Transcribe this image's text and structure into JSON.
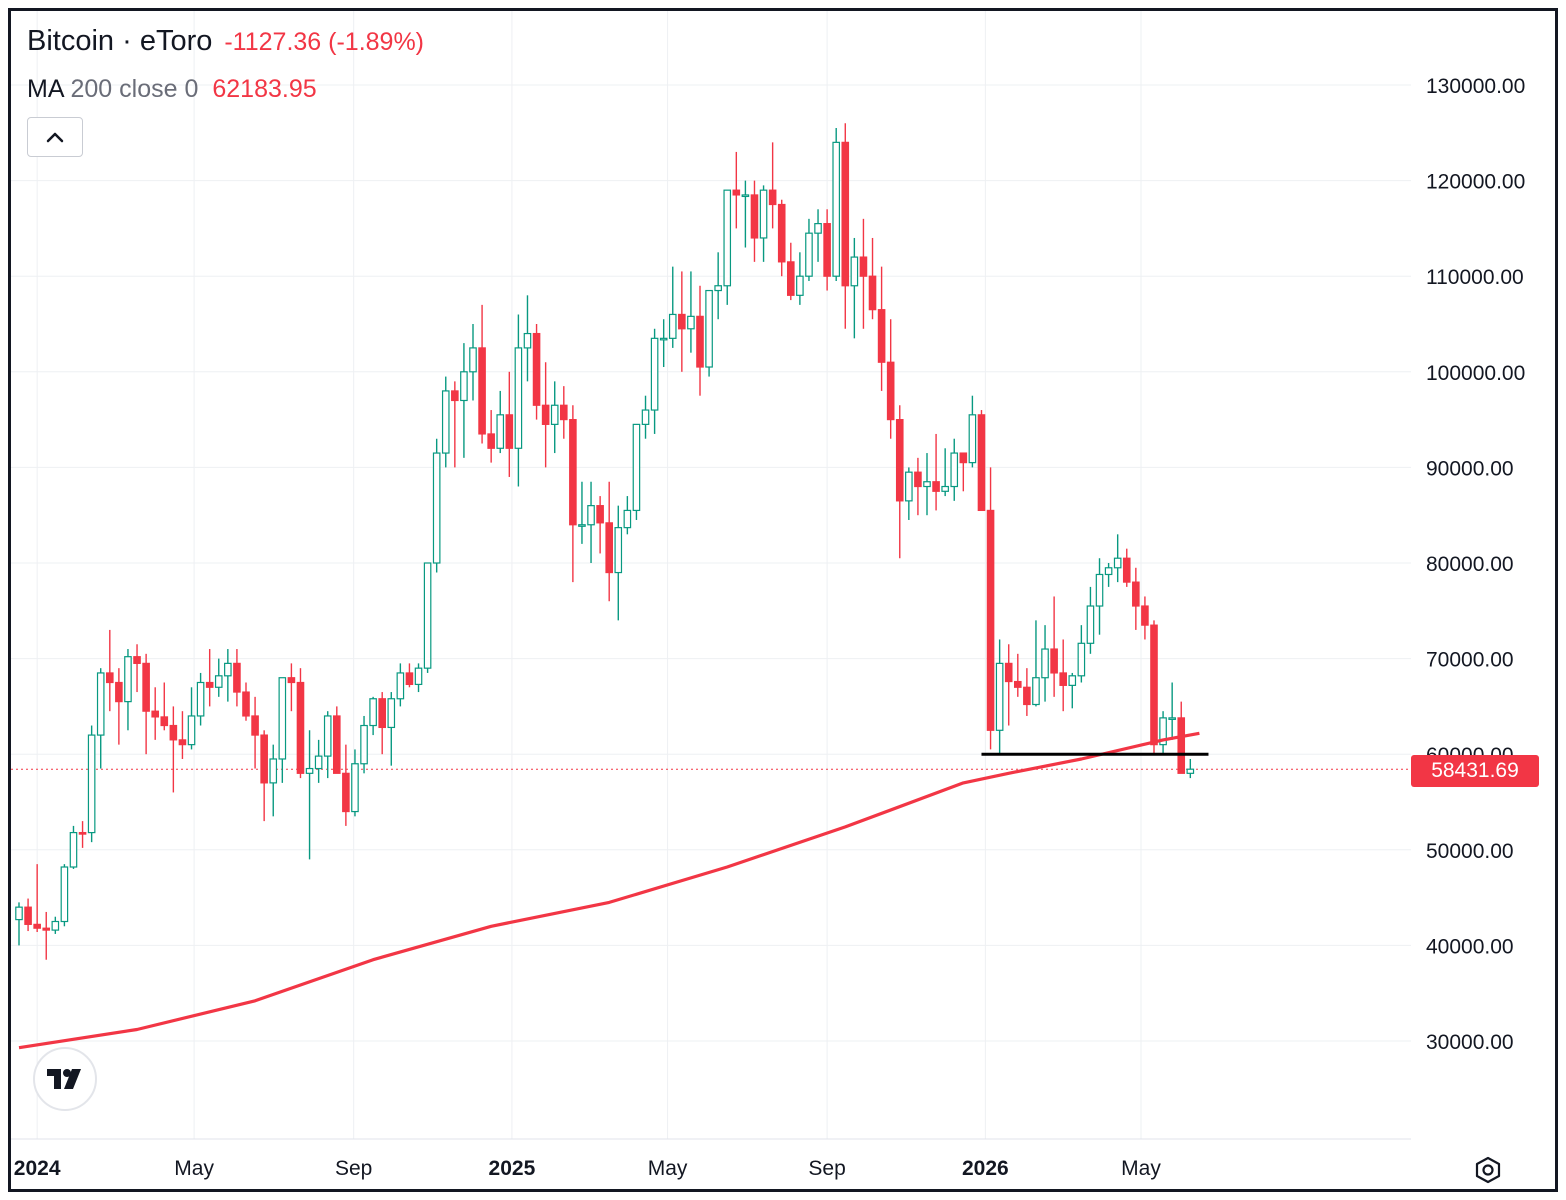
{
  "legend": {
    "symbol": "Bitcoin · eToro",
    "change": "-1127.36 (-1.89%)",
    "ma_name": "MA",
    "ma_params": "200 close 0",
    "ma_value": "62183.95"
  },
  "last_price_label": "58431.69",
  "icons": {
    "collapse": "chevron-up-icon",
    "logo": "tradingview-logo-icon",
    "settings": "settings-hexagon-icon"
  },
  "colors": {
    "up": "#089981",
    "down": "#f23645",
    "ma": "#f23645",
    "support_line": "#000000",
    "grid": "#eef0f3",
    "text": "#131722"
  },
  "chart_data": {
    "type": "candlestick",
    "interval": "weekly",
    "ylim": [
      21000,
      139000
    ],
    "y_ticks": [
      {
        "value": 30000,
        "label": "30000.00"
      },
      {
        "value": 40000,
        "label": "40000.00"
      },
      {
        "value": 50000,
        "label": "50000.00"
      },
      {
        "value": 60000,
        "label": "60000.00"
      },
      {
        "value": 70000,
        "label": "70000.00"
      },
      {
        "value": 80000,
        "label": "80000.00"
      },
      {
        "value": 90000,
        "label": "90000.00"
      },
      {
        "value": 100000,
        "label": "100000.00"
      },
      {
        "value": 110000,
        "label": "110000.00"
      },
      {
        "value": 120000,
        "label": "120000.00"
      },
      {
        "value": 130000,
        "label": "130000.00"
      }
    ],
    "x_ticks": [
      {
        "date": "2024-01-01",
        "label": "2024",
        "bold": true
      },
      {
        "date": "2024-05-01",
        "label": "May",
        "bold": false
      },
      {
        "date": "2024-09-01",
        "label": "Sep",
        "bold": false
      },
      {
        "date": "2025-01-01",
        "label": "2025",
        "bold": true
      },
      {
        "date": "2025-05-01",
        "label": "May",
        "bold": false
      },
      {
        "date": "2025-09-01",
        "label": "Sep",
        "bold": false
      },
      {
        "date": "2026-01-01",
        "label": "2026",
        "bold": true
      },
      {
        "date": "2026-05-01",
        "label": "May",
        "bold": false
      }
    ],
    "first_week": "2023-12-18",
    "candles": [
      [
        42700,
        44500,
        40000,
        44000
      ],
      [
        44000,
        44900,
        41500,
        42200
      ],
      [
        42200,
        48500,
        41400,
        41800
      ],
      [
        41800,
        43500,
        38500,
        41600
      ],
      [
        41600,
        43000,
        41200,
        42500
      ],
      [
        42500,
        48500,
        42000,
        48200
      ],
      [
        48200,
        52500,
        48000,
        51800
      ],
      [
        51800,
        53000,
        50200,
        51700
      ],
      [
        51800,
        63000,
        50800,
        62000
      ],
      [
        62000,
        69000,
        58500,
        68500
      ],
      [
        68500,
        73000,
        64500,
        67500
      ],
      [
        67500,
        69000,
        61000,
        65500
      ],
      [
        65500,
        71000,
        62500,
        70200
      ],
      [
        70200,
        71500,
        66500,
        69500
      ],
      [
        69500,
        70500,
        60000,
        64500
      ],
      [
        64500,
        67000,
        61500,
        63900
      ],
      [
        63900,
        67500,
        62500,
        63000
      ],
      [
        63000,
        65000,
        56000,
        61500
      ],
      [
        61500,
        64500,
        59500,
        61000
      ],
      [
        61000,
        67000,
        60500,
        64000
      ],
      [
        64000,
        68500,
        63000,
        67500
      ],
      [
        67500,
        71000,
        65000,
        67000
      ],
      [
        67000,
        70000,
        66000,
        68200
      ],
      [
        68200,
        71000,
        65500,
        69500
      ],
      [
        69500,
        71000,
        65000,
        66500
      ],
      [
        66500,
        67500,
        63500,
        64000
      ],
      [
        64000,
        66000,
        58500,
        62000
      ],
      [
        62000,
        62500,
        53000,
        57000
      ],
      [
        57000,
        61000,
        53500,
        59500
      ],
      [
        59500,
        68000,
        57000,
        68000
      ],
      [
        68000,
        69500,
        64500,
        67500
      ],
      [
        67500,
        69000,
        57500,
        58000
      ],
      [
        58000,
        62500,
        49000,
        58500
      ],
      [
        58500,
        61500,
        57000,
        59800
      ],
      [
        59800,
        64500,
        57500,
        64000
      ],
      [
        64000,
        65000,
        58000,
        58000
      ],
      [
        58000,
        61000,
        52500,
        54000
      ],
      [
        54000,
        60500,
        53500,
        59000
      ],
      [
        59000,
        64000,
        58000,
        63000
      ],
      [
        63000,
        66000,
        62000,
        65800
      ],
      [
        65800,
        66500,
        60000,
        62800
      ],
      [
        62800,
        66500,
        58800,
        65800
      ],
      [
        65800,
        69500,
        65000,
        68500
      ],
      [
        68500,
        69500,
        67000,
        67300
      ],
      [
        67300,
        69500,
        66500,
        69000
      ],
      [
        69000,
        80000,
        68500,
        80000
      ],
      [
        80000,
        93000,
        79000,
        91500
      ],
      [
        91500,
        99500,
        90000,
        98000
      ],
      [
        98000,
        99000,
        90000,
        97000
      ],
      [
        97000,
        103000,
        91000,
        100000
      ],
      [
        100000,
        105000,
        97000,
        102500
      ],
      [
        102500,
        107000,
        92500,
        93500
      ],
      [
        93500,
        96000,
        90500,
        92000
      ],
      [
        92000,
        98000,
        91500,
        95500
      ],
      [
        95500,
        100000,
        89000,
        92000
      ],
      [
        92000,
        106000,
        88000,
        102500
      ],
      [
        102500,
        108000,
        99000,
        104000
      ],
      [
        104000,
        105000,
        95000,
        96500
      ],
      [
        96500,
        101000,
        90000,
        94500
      ],
      [
        94500,
        99000,
        91500,
        96500
      ],
      [
        96500,
        98500,
        93000,
        95000
      ],
      [
        95000,
        96500,
        78000,
        84000
      ],
      [
        84000,
        88500,
        82000,
        84000
      ],
      [
        84000,
        88500,
        80000,
        86000
      ],
      [
        86000,
        87000,
        81000,
        84200
      ],
      [
        84200,
        88500,
        76000,
        79000
      ],
      [
        79000,
        86000,
        74000,
        83700
      ],
      [
        83700,
        87000,
        83000,
        85500
      ],
      [
        85500,
        94000,
        84500,
        94500
      ],
      [
        94500,
        97500,
        93000,
        96000
      ],
      [
        96000,
        104500,
        93500,
        103500
      ],
      [
        103500,
        105500,
        100500,
        103500
      ],
      [
        103500,
        111000,
        102500,
        106000
      ],
      [
        106000,
        110500,
        100000,
        104500
      ],
      [
        104500,
        110500,
        102000,
        105800
      ],
      [
        105800,
        109000,
        97500,
        100500
      ],
      [
        100500,
        108500,
        99500,
        108500
      ],
      [
        108500,
        112500,
        105500,
        109000
      ],
      [
        109000,
        119000,
        107000,
        119000
      ],
      [
        119000,
        123000,
        115000,
        118500
      ],
      [
        118500,
        120000,
        113000,
        118500
      ],
      [
        118500,
        120000,
        111500,
        114000
      ],
      [
        114000,
        119500,
        111500,
        119000
      ],
      [
        119000,
        124000,
        115000,
        117500
      ],
      [
        117500,
        118000,
        110000,
        111500
      ],
      [
        111500,
        113500,
        107500,
        108000
      ],
      [
        108000,
        112500,
        107000,
        110000
      ],
      [
        110000,
        116000,
        109500,
        114500
      ],
      [
        114500,
        117000,
        111500,
        115500
      ],
      [
        115500,
        117000,
        108500,
        110000
      ],
      [
        110000,
        125500,
        109500,
        124000
      ],
      [
        124000,
        126000,
        104500,
        109000
      ],
      [
        109000,
        114000,
        103500,
        112000
      ],
      [
        112000,
        116000,
        104500,
        110000
      ],
      [
        110000,
        114000,
        105500,
        106500
      ],
      [
        106500,
        111000,
        98000,
        101000
      ],
      [
        101000,
        105500,
        93000,
        95000
      ],
      [
        95000,
        96500,
        80500,
        86500
      ],
      [
        86500,
        90000,
        84500,
        89500
      ],
      [
        89500,
        91000,
        85000,
        88000
      ],
      [
        88000,
        91500,
        85000,
        88500
      ],
      [
        88500,
        93500,
        85500,
        87500
      ],
      [
        87500,
        92000,
        87000,
        88000
      ],
      [
        88000,
        93000,
        86500,
        91500
      ],
      [
        91500,
        91500,
        87500,
        90500
      ],
      [
        90500,
        97500,
        90000,
        95500
      ],
      [
        95500,
        96000,
        85500,
        85500
      ],
      [
        85500,
        90000,
        60500,
        62500
      ],
      [
        62500,
        72000,
        60000,
        69500
      ],
      [
        69500,
        71500,
        63000,
        67600
      ],
      [
        67600,
        70500,
        66000,
        67000
      ],
      [
        67000,
        69000,
        64000,
        65200
      ],
      [
        65200,
        74000,
        65000,
        68000
      ],
      [
        68000,
        73500,
        65500,
        71000
      ],
      [
        71000,
        76500,
        66000,
        68500
      ],
      [
        68500,
        72000,
        64500,
        67200
      ],
      [
        67200,
        68500,
        64800,
        68200
      ],
      [
        68200,
        73500,
        67500,
        71600
      ],
      [
        71600,
        77500,
        70500,
        75500
      ],
      [
        75500,
        80500,
        72500,
        78800
      ],
      [
        78800,
        80000,
        77500,
        79500
      ],
      [
        79500,
        83000,
        78000,
        80500
      ],
      [
        80500,
        81500,
        77500,
        78000
      ],
      [
        78000,
        79500,
        73000,
        75500
      ],
      [
        75500,
        76500,
        72000,
        73500
      ],
      [
        73500,
        74000,
        60000,
        61000
      ],
      [
        61000,
        64500,
        60000,
        63800
      ],
      [
        63800,
        67500,
        61500,
        63800
      ],
      [
        63800,
        65500,
        58000,
        58000
      ],
      [
        58000,
        59500,
        57500,
        58430
      ]
    ],
    "series": [
      {
        "name": "MA 200 close 0",
        "type": "line",
        "points": [
          [
            "2023-12-18",
            29300
          ],
          [
            "2024-03-18",
            31200
          ],
          [
            "2024-06-17",
            34200
          ],
          [
            "2024-09-16",
            38500
          ],
          [
            "2024-12-16",
            42000
          ],
          [
            "2025-03-17",
            44500
          ],
          [
            "2025-06-16",
            48200
          ],
          [
            "2025-09-15",
            52400
          ],
          [
            "2025-12-15",
            57000
          ],
          [
            "2026-01-19",
            58000
          ],
          [
            "2026-03-16",
            59500
          ],
          [
            "2026-05-18",
            61500
          ],
          [
            "2026-06-15",
            62183.95
          ]
        ]
      }
    ],
    "support_line": {
      "y": 60000,
      "x_start": "2025-12-29",
      "x_end": "2026-06-22"
    },
    "last_price": 58431.69
  }
}
